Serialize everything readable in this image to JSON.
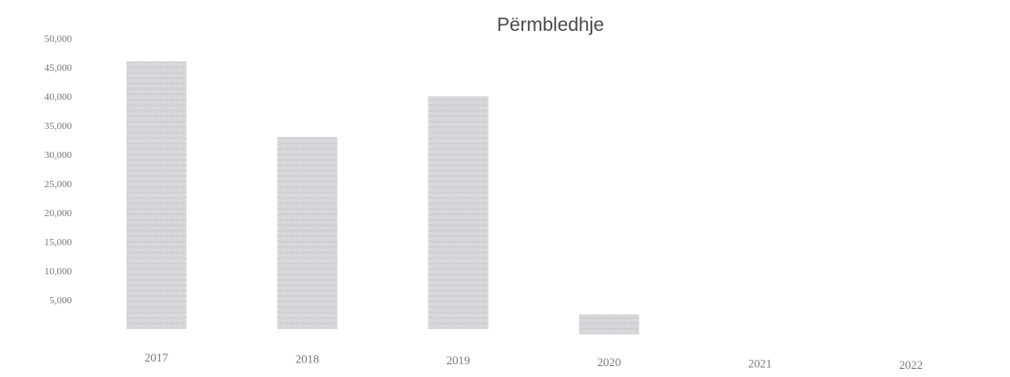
{
  "chart_data": {
    "type": "bar",
    "title": "Përmbledhje",
    "xlabel": "",
    "ylabel": "",
    "categories": [
      "2017",
      "2018",
      "2019",
      "2020",
      "2021",
      "2022"
    ],
    "values": [
      46000,
      33000,
      40000,
      2500,
      0,
      0
    ],
    "ylim": [
      0,
      50000
    ],
    "yticks": [
      "5,000",
      "10,000",
      "15,000",
      "20,000",
      "25,000",
      "30,000",
      "35,000",
      "40,000",
      "45,000",
      "50,000"
    ],
    "ytick_values": [
      5000,
      10000,
      15000,
      20000,
      25000,
      30000,
      35000,
      40000,
      45000,
      50000
    ],
    "grid": false,
    "legend": "none",
    "bar_color": "#d9d9dc",
    "bar_stripe_color": "#c4c4c8",
    "text_color": "#777777"
  }
}
